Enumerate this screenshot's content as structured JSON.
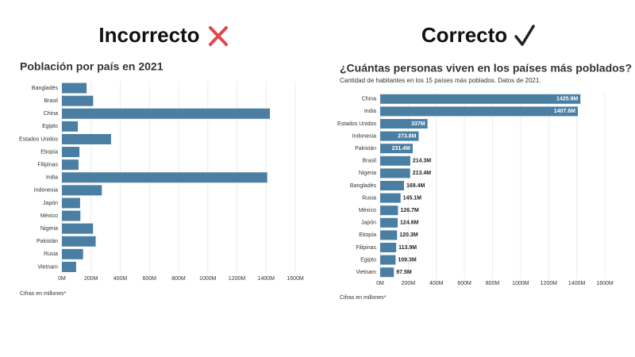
{
  "headings": [
    "Incorrecto",
    "Correcto"
  ],
  "chart_data": [
    {
      "type": "bar",
      "orientation": "horizontal",
      "title": "Población por país en 2021",
      "categories": [
        "Bangladés",
        "Brasil",
        "China",
        "Egipto",
        "Estados Unidos",
        "Etiopía",
        "Filipinas",
        "India",
        "Indonesia",
        "Japón",
        "México",
        "Nigeria",
        "Pakistán",
        "Rusia",
        "Vietnam"
      ],
      "values": [
        169.4,
        214.3,
        1425.9,
        109.3,
        337,
        120.3,
        113.9,
        1407.6,
        273.8,
        124.6,
        126.7,
        213.4,
        231.4,
        145.1,
        97.5
      ],
      "color": "#4a7fa3",
      "xlim": [
        0,
        1600
      ],
      "xticks": [
        {
          "value": 0,
          "label": "0M"
        },
        {
          "value": 200,
          "label": "200M"
        },
        {
          "value": 400,
          "label": "400M"
        },
        {
          "value": 600,
          "label": "600M"
        },
        {
          "value": 800,
          "label": "800M"
        },
        {
          "value": 1000,
          "label": "1000M"
        },
        {
          "value": 1200,
          "label": "1200M"
        },
        {
          "value": 1400,
          "label": "1400M"
        },
        {
          "value": 1600,
          "label": "1600M"
        }
      ],
      "grid": true,
      "footnote": "Cifras en millones*"
    },
    {
      "type": "bar",
      "orientation": "horizontal",
      "title": "¿Cuántas personas viven en los países más poblados?",
      "subtitle": "Cantidad de habitantes en los 15 países más poblados. Datos de 2021.",
      "categories": [
        "China",
        "India",
        "Estados Unidos",
        "Indonesia",
        "Pakistán",
        "Brasil",
        "Nigeria",
        "Bangladés",
        "Rusia",
        "México",
        "Japón",
        "Etiopía",
        "Filipinas",
        "Egipto",
        "Vietnam"
      ],
      "values": [
        1425.9,
        1407.6,
        337,
        273.8,
        231.4,
        214.3,
        213.4,
        169.4,
        145.1,
        126.7,
        124.6,
        120.3,
        113.9,
        109.3,
        97.5
      ],
      "value_labels": [
        "1425.9M",
        "1407.6M",
        "337M",
        "273.8M",
        "231.4M",
        "214.3M",
        "213.4M",
        "169.4M",
        "145.1M",
        "126.7M",
        "124.6M",
        "120.3M",
        "113.9M",
        "109.3M",
        "97.5M"
      ],
      "color": "#4a7fa3",
      "xlim": [
        0,
        1600
      ],
      "xticks": [
        {
          "value": 0,
          "label": "0M"
        },
        {
          "value": 200,
          "label": "200M"
        },
        {
          "value": 400,
          "label": "400M"
        },
        {
          "value": 600,
          "label": "600M"
        },
        {
          "value": 800,
          "label": "800M"
        },
        {
          "value": 1000,
          "label": "1000M"
        },
        {
          "value": 1200,
          "label": "1200M"
        },
        {
          "value": 1400,
          "label": "1400M"
        },
        {
          "value": 1600,
          "label": "1600M"
        }
      ],
      "grid": true,
      "footnote": "Cifras en millones*"
    }
  ]
}
